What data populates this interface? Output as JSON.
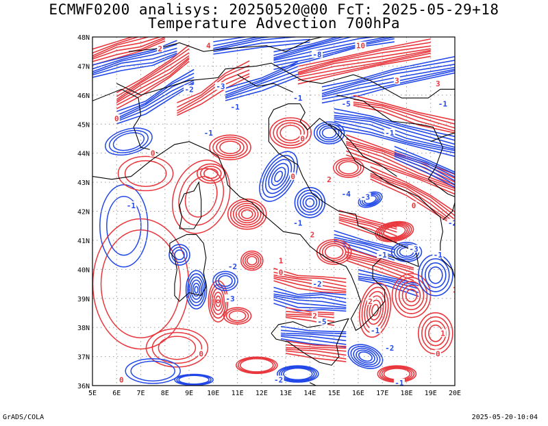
{
  "header": {
    "title_line1": "ECMWF0200 analisys: 20250520@00 FcT: 2025-05-29+18",
    "title_line2": "Temperature Advection 700hPa"
  },
  "map": {
    "lat_labels": [
      "48N",
      "47N",
      "46N",
      "45N",
      "44N",
      "43N",
      "42N",
      "41N",
      "40N",
      "39N",
      "38N",
      "37N",
      "36N"
    ],
    "lon_labels": [
      "5E",
      "6E",
      "7E",
      "8E",
      "9E",
      "10E",
      "11E",
      "12E",
      "13E",
      "14E",
      "15E",
      "16E",
      "17E",
      "18E",
      "19E",
      "20E"
    ],
    "contour_labels": [
      {
        "text": "-1",
        "lon": 6.6,
        "lat": 42.2,
        "color": "blue"
      },
      {
        "text": "-1",
        "lon": 9.8,
        "lat": 44.7,
        "color": "blue"
      },
      {
        "text": "-2",
        "lon": 10.8,
        "lat": 40.1,
        "color": "blue"
      },
      {
        "text": "-2",
        "lon": 14.3,
        "lat": 39.5,
        "color": "blue"
      },
      {
        "text": "-3",
        "lon": 16.3,
        "lat": 42.5,
        "color": "blue"
      },
      {
        "text": "-1",
        "lon": 17.0,
        "lat": 40.5,
        "color": "blue"
      },
      {
        "text": "-3",
        "lon": 18.3,
        "lat": 40.7,
        "color": "blue"
      },
      {
        "text": "-1",
        "lon": 19.3,
        "lat": 40.5,
        "color": "blue"
      },
      {
        "text": "-2",
        "lon": 19.9,
        "lat": 41.6,
        "color": "blue"
      },
      {
        "text": "-1",
        "lon": 17.3,
        "lat": 44.7,
        "color": "blue"
      },
      {
        "text": "-1",
        "lon": 19.5,
        "lat": 45.7,
        "color": "blue"
      },
      {
        "text": "-1",
        "lon": 16.7,
        "lat": 37.9,
        "color": "blue"
      },
      {
        "text": "-2",
        "lon": 17.3,
        "lat": 37.3,
        "color": "blue"
      },
      {
        "text": "-1",
        "lon": 13.5,
        "lat": 41.6,
        "color": "blue"
      },
      {
        "text": "-8",
        "lon": 14.3,
        "lat": 47.4,
        "color": "blue"
      },
      {
        "text": "-2",
        "lon": 9.0,
        "lat": 46.2,
        "color": "blue"
      },
      {
        "text": "-3",
        "lon": 10.3,
        "lat": 46.3,
        "color": "blue"
      },
      {
        "text": "-1",
        "lon": 10.9,
        "lat": 45.6,
        "color": "blue"
      },
      {
        "text": "-1",
        "lon": 13.5,
        "lat": 45.9,
        "color": "blue"
      },
      {
        "text": "-5",
        "lon": 15.5,
        "lat": 45.7,
        "color": "blue"
      },
      {
        "text": "-4",
        "lon": 15.5,
        "lat": 42.6,
        "color": "blue"
      },
      {
        "text": "-3",
        "lon": 10.7,
        "lat": 39.0,
        "color": "blue"
      },
      {
        "text": "-5",
        "lon": 14.5,
        "lat": 38.2,
        "color": "blue"
      },
      {
        "text": "-2",
        "lon": 12.7,
        "lat": 36.2,
        "color": "blue"
      },
      {
        "text": "-1",
        "lon": 17.7,
        "lat": 36.1,
        "color": "blue"
      },
      {
        "text": "2",
        "lon": 16.5,
        "lat": 38.9,
        "color": "red"
      },
      {
        "text": "2",
        "lon": 14.2,
        "lat": 38.4,
        "color": "red"
      },
      {
        "text": "1",
        "lon": 12.8,
        "lat": 40.3,
        "color": "red"
      },
      {
        "text": "0",
        "lon": 12.8,
        "lat": 39.9,
        "color": "red"
      },
      {
        "text": "0",
        "lon": 7.5,
        "lat": 44.0,
        "color": "red"
      },
      {
        "text": "0",
        "lon": 6.0,
        "lat": 45.2,
        "color": "red"
      },
      {
        "text": "0",
        "lon": 13.7,
        "lat": 44.5,
        "color": "red"
      },
      {
        "text": "0",
        "lon": 9.5,
        "lat": 37.1,
        "color": "red"
      },
      {
        "text": "0",
        "lon": 6.2,
        "lat": 36.2,
        "color": "red"
      },
      {
        "text": "0",
        "lon": 13.3,
        "lat": 43.2,
        "color": "red"
      },
      {
        "text": "1",
        "lon": 19.5,
        "lat": 37.8,
        "color": "red"
      },
      {
        "text": "0",
        "lon": 19.3,
        "lat": 37.1,
        "color": "red"
      },
      {
        "text": "0",
        "lon": 18.3,
        "lat": 42.2,
        "color": "red"
      },
      {
        "text": "2",
        "lon": 14.8,
        "lat": 43.1,
        "color": "red"
      },
      {
        "text": "3",
        "lon": 17.6,
        "lat": 46.5,
        "color": "red"
      },
      {
        "text": "3",
        "lon": 19.3,
        "lat": 46.4,
        "color": "red"
      },
      {
        "text": "10",
        "lon": 16.1,
        "lat": 47.7,
        "color": "red"
      },
      {
        "text": "4",
        "lon": 9.8,
        "lat": 47.7,
        "color": "red"
      },
      {
        "text": "2",
        "lon": 14.1,
        "lat": 41.2,
        "color": "red"
      },
      {
        "text": "1",
        "lon": 20.0,
        "lat": 39.3,
        "color": "red"
      },
      {
        "text": "2",
        "lon": 7.8,
        "lat": 47.6,
        "color": "red"
      }
    ]
  },
  "footer": {
    "left": "GrADS/COLA",
    "right": "2025-05-20-10:04"
  },
  "colors": {
    "positive_contour": "#e8363c",
    "negative_contour": "#2147e8",
    "grid": "#999999",
    "coast": "#000000"
  }
}
